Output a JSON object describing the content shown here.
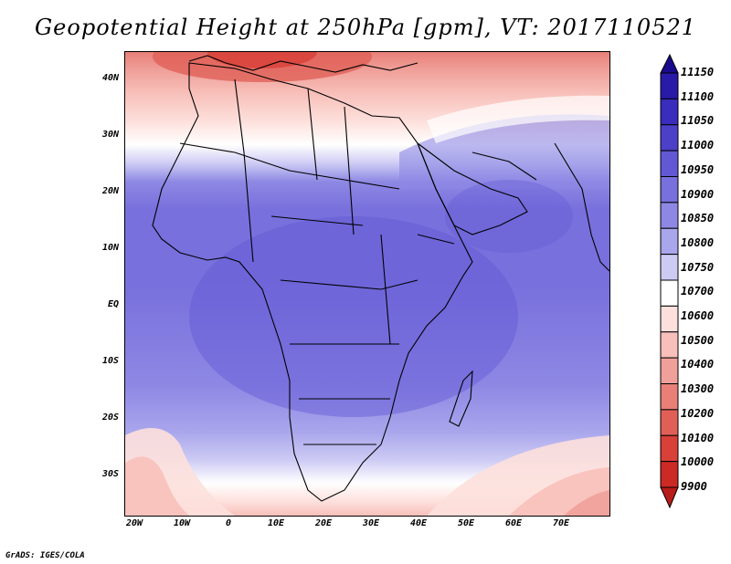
{
  "title": "Geopotential Height at 250hPa [gpm], VT: 2017110521",
  "credit": "GrADS: IGES/COLA",
  "lat_labels": [
    "40N",
    "30N",
    "20N",
    "10N",
    "EQ",
    "10S",
    "20S",
    "30S"
  ],
  "lon_labels": [
    "20W",
    "10W",
    "0",
    "10E",
    "20E",
    "30E",
    "40E",
    "50E",
    "60E",
    "70E"
  ],
  "colorbar": {
    "labels": [
      "11150",
      "11100",
      "11050",
      "11000",
      "10950",
      "10900",
      "10850",
      "10800",
      "10750",
      "10700",
      "10600",
      "10500",
      "10400",
      "10300",
      "10200",
      "10100",
      "10000",
      "9900"
    ],
    "colors": [
      "#1a0a8c",
      "#2a1aa8",
      "#3a2cbc",
      "#4d40c8",
      "#6258d4",
      "#7870dc",
      "#8e88e4",
      "#aaa6ec",
      "#cdcbf4",
      "#ffffff",
      "#fde0dc",
      "#f8c0ba",
      "#f0a09a",
      "#e88078",
      "#e06058",
      "#d84038",
      "#cc2a24",
      "#b81c18"
    ]
  },
  "map": {
    "variable": "Geopotential Height",
    "level": "250hPa",
    "units": "gpm",
    "valid_time": "2017110521",
    "region": "Africa"
  }
}
